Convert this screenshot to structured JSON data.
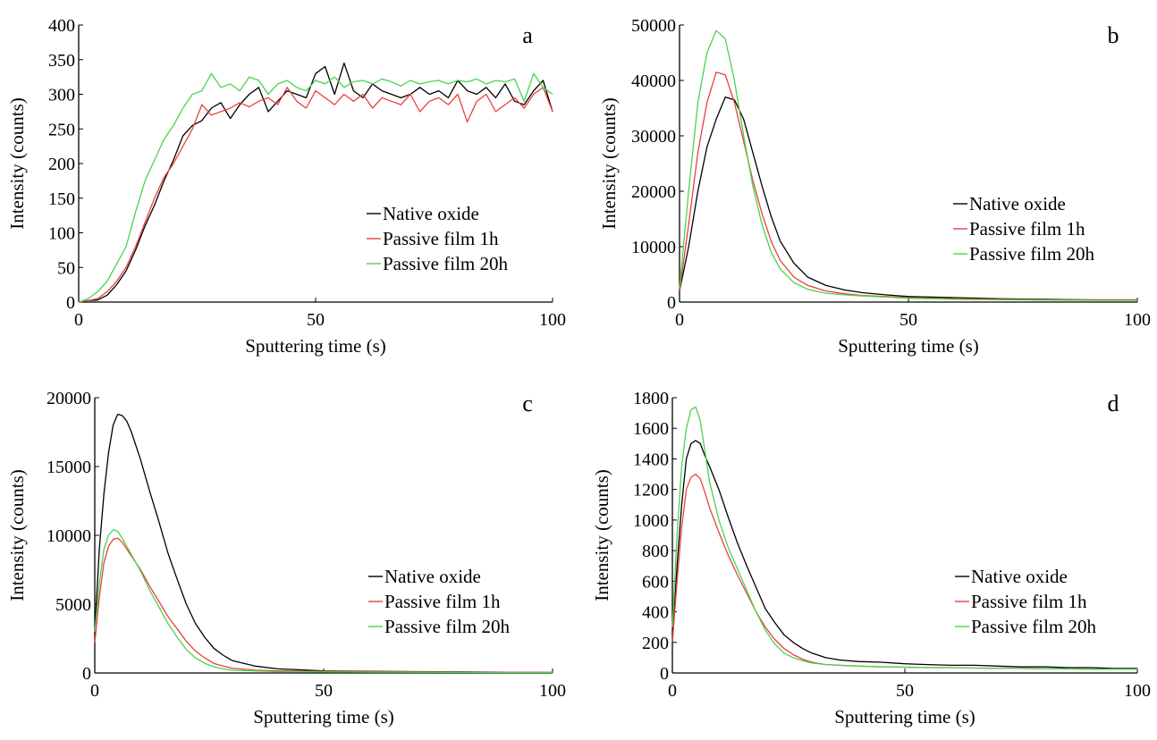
{
  "chart_data": [
    {
      "type": "line",
      "panel_label": "a",
      "xlabel": "Sputtering time (s)",
      "ylabel": "Intensity (counts)",
      "xlim": [
        0,
        100
      ],
      "ylim": [
        0,
        400
      ],
      "xticks": [
        0,
        50,
        100
      ],
      "yticks": [
        0,
        50,
        100,
        150,
        200,
        250,
        300,
        350,
        400
      ],
      "tick_labels_y": [
        "0",
        "50",
        "100",
        "150",
        "200",
        "250",
        "300",
        "350",
        "400"
      ],
      "tick_labels_x": [
        "0",
        "50",
        "100"
      ],
      "legend_position": "bottom-right",
      "grid": false,
      "series": [
        {
          "name": "Native oxide",
          "color": "#000000",
          "x": [
            0,
            2,
            4,
            6,
            8,
            10,
            12,
            14,
            16,
            18,
            20,
            22,
            24,
            26,
            28,
            30,
            32,
            34,
            36,
            38,
            40,
            42,
            44,
            46,
            48,
            50,
            52,
            54,
            56,
            58,
            60,
            62,
            64,
            66,
            68,
            70,
            72,
            74,
            76,
            78,
            80,
            82,
            84,
            86,
            88,
            90,
            92,
            94,
            96,
            98,
            100
          ],
          "y": [
            0,
            2,
            3,
            10,
            25,
            45,
            75,
            110,
            140,
            175,
            205,
            240,
            255,
            262,
            280,
            288,
            265,
            285,
            300,
            310,
            275,
            290,
            305,
            300,
            295,
            330,
            340,
            300,
            345,
            305,
            295,
            315,
            305,
            300,
            295,
            300,
            310,
            300,
            305,
            295,
            320,
            305,
            300,
            310,
            295,
            315,
            290,
            285,
            305,
            320,
            275
          ]
        },
        {
          "name": "Passive film 1h",
          "color": "#e8413c",
          "x": [
            0,
            2,
            4,
            6,
            8,
            10,
            12,
            14,
            16,
            18,
            20,
            22,
            24,
            26,
            28,
            30,
            32,
            34,
            36,
            38,
            40,
            42,
            44,
            46,
            48,
            50,
            52,
            54,
            56,
            58,
            60,
            62,
            64,
            66,
            68,
            70,
            72,
            74,
            76,
            78,
            80,
            82,
            84,
            86,
            88,
            90,
            92,
            94,
            96,
            98,
            100
          ],
          "y": [
            0,
            2,
            5,
            15,
            30,
            50,
            80,
            115,
            150,
            180,
            200,
            225,
            250,
            285,
            270,
            275,
            280,
            288,
            282,
            290,
            295,
            285,
            310,
            290,
            280,
            305,
            295,
            285,
            300,
            290,
            300,
            280,
            295,
            290,
            285,
            300,
            275,
            290,
            295,
            285,
            300,
            260,
            290,
            300,
            275,
            285,
            295,
            280,
            300,
            310,
            275
          ]
        },
        {
          "name": "Passive film 20h",
          "color": "#4cd24c",
          "x": [
            0,
            2,
            4,
            6,
            8,
            10,
            12,
            14,
            16,
            18,
            20,
            22,
            24,
            26,
            28,
            30,
            32,
            34,
            36,
            38,
            40,
            42,
            44,
            46,
            48,
            50,
            52,
            54,
            56,
            58,
            60,
            62,
            64,
            66,
            68,
            70,
            72,
            74,
            76,
            78,
            80,
            82,
            84,
            86,
            88,
            90,
            92,
            94,
            96,
            98,
            100
          ],
          "y": [
            0,
            5,
            15,
            30,
            55,
            80,
            130,
            175,
            205,
            235,
            255,
            280,
            300,
            305,
            330,
            310,
            315,
            305,
            325,
            320,
            300,
            315,
            320,
            310,
            305,
            320,
            315,
            325,
            310,
            318,
            320,
            315,
            322,
            318,
            312,
            320,
            315,
            318,
            320,
            315,
            320,
            318,
            322,
            315,
            320,
            318,
            322,
            290,
            330,
            310,
            300
          ]
        }
      ]
    },
    {
      "type": "line",
      "panel_label": "b",
      "xlabel": "Sputtering time (s)",
      "ylabel": "Intensity (counts)",
      "xlim": [
        0,
        100
      ],
      "ylim": [
        0,
        50000
      ],
      "xticks": [
        0,
        50,
        100
      ],
      "yticks": [
        0,
        10000,
        20000,
        30000,
        40000,
        50000
      ],
      "tick_labels_y": [
        "0",
        "10000",
        "20000",
        "30000",
        "40000",
        "50000"
      ],
      "tick_labels_x": [
        "0",
        "50",
        "100"
      ],
      "legend_position": "center-right",
      "grid": false,
      "series": [
        {
          "name": "Native oxide",
          "color": "#000000",
          "x": [
            0,
            2,
            4,
            6,
            8,
            10,
            12,
            14,
            16,
            18,
            20,
            22,
            25,
            28,
            32,
            36,
            40,
            45,
            50,
            60,
            70,
            80,
            90,
            100
          ],
          "y": [
            2000,
            10000,
            20000,
            28000,
            33000,
            37000,
            36500,
            33000,
            27000,
            21000,
            15500,
            11000,
            7000,
            4500,
            3000,
            2200,
            1700,
            1300,
            1000,
            800,
            600,
            500,
            400,
            400
          ]
        },
        {
          "name": "Passive film 1h",
          "color": "#e8413c",
          "x": [
            0,
            2,
            4,
            6,
            8,
            10,
            12,
            14,
            16,
            18,
            20,
            22,
            25,
            28,
            32,
            36,
            40,
            45,
            50,
            60,
            70,
            80,
            90,
            100
          ],
          "y": [
            2000,
            14000,
            27000,
            36000,
            41500,
            41000,
            36000,
            29000,
            22000,
            16000,
            11000,
            7500,
            4500,
            3000,
            2000,
            1500,
            1200,
            1000,
            800,
            600,
            500,
            400,
            400,
            400
          ]
        },
        {
          "name": "Passive film 20h",
          "color": "#4cd24c",
          "x": [
            0,
            2,
            4,
            6,
            8,
            10,
            12,
            14,
            16,
            18,
            20,
            22,
            25,
            28,
            32,
            36,
            40,
            45,
            50,
            60,
            70,
            80,
            90,
            100
          ],
          "y": [
            2500,
            20000,
            36000,
            45000,
            49000,
            47500,
            40000,
            30000,
            21000,
            14000,
            9000,
            6000,
            3500,
            2300,
            1600,
            1300,
            1100,
            900,
            700,
            500,
            400,
            350,
            300,
            300
          ]
        }
      ]
    },
    {
      "type": "line",
      "panel_label": "c",
      "xlabel": "Sputtering time (s)",
      "ylabel": "Intensity (counts)",
      "xlim": [
        0,
        100
      ],
      "ylim": [
        0,
        20000
      ],
      "xticks": [
        0,
        50,
        100
      ],
      "yticks": [
        0,
        5000,
        10000,
        15000,
        20000
      ],
      "tick_labels_y": [
        "0",
        "5000",
        "10000",
        "15000",
        "20000"
      ],
      "tick_labels_x": [
        "0",
        "50",
        "100"
      ],
      "legend_position": "center-right",
      "grid": false,
      "series": [
        {
          "name": "Native oxide",
          "color": "#000000",
          "x": [
            0,
            1,
            2,
            3,
            4,
            5,
            6,
            7,
            8,
            10,
            12,
            14,
            16,
            18,
            20,
            22,
            24,
            26,
            28,
            30,
            35,
            40,
            50,
            60,
            70,
            80,
            90,
            100
          ],
          "y": [
            3000,
            9000,
            13000,
            16000,
            18000,
            18800,
            18700,
            18300,
            17500,
            15500,
            13200,
            11000,
            8700,
            6800,
            5000,
            3600,
            2600,
            1800,
            1300,
            900,
            500,
            300,
            150,
            120,
            100,
            80,
            60,
            50
          ]
        },
        {
          "name": "Passive film 1h",
          "color": "#e8413c",
          "x": [
            0,
            1,
            2,
            3,
            4,
            5,
            6,
            7,
            8,
            10,
            12,
            14,
            16,
            18,
            20,
            22,
            24,
            26,
            28,
            30,
            35,
            40,
            50,
            60,
            70,
            80,
            90,
            100
          ],
          "y": [
            2200,
            5500,
            8000,
            9200,
            9700,
            9800,
            9500,
            9000,
            8500,
            7500,
            6300,
            5200,
            4100,
            3200,
            2300,
            1600,
            1100,
            700,
            500,
            350,
            200,
            150,
            120,
            100,
            80,
            60,
            50,
            50
          ]
        },
        {
          "name": "Passive film 20h",
          "color": "#4cd24c",
          "x": [
            0,
            1,
            2,
            3,
            4,
            5,
            6,
            7,
            8,
            10,
            12,
            14,
            16,
            18,
            20,
            22,
            24,
            26,
            28,
            30,
            35,
            40,
            50,
            60,
            70,
            80,
            90,
            100
          ],
          "y": [
            3000,
            6500,
            9000,
            10000,
            10400,
            10300,
            9800,
            9200,
            8600,
            7400,
            6000,
            4800,
            3600,
            2600,
            1700,
            1100,
            700,
            450,
            300,
            200,
            150,
            100,
            80,
            60,
            50,
            40,
            30,
            30
          ]
        }
      ]
    },
    {
      "type": "line",
      "panel_label": "d",
      "xlabel": "Sputtering time (s)",
      "ylabel": "Intensity (counts)",
      "xlim": [
        0,
        100
      ],
      "ylim": [
        0,
        1800
      ],
      "xticks": [
        0,
        50,
        100
      ],
      "yticks": [
        0,
        200,
        400,
        600,
        800,
        1000,
        1200,
        1400,
        1600,
        1800
      ],
      "tick_labels_y": [
        "0",
        "200",
        "400",
        "600",
        "800",
        "1000",
        "1200",
        "1400",
        "1600",
        "1800"
      ],
      "tick_labels_x": [
        "0",
        "50",
        "100"
      ],
      "legend_position": "bottom-right",
      "grid": false,
      "series": [
        {
          "name": "Native oxide",
          "color": "#000000",
          "x": [
            0,
            1,
            2,
            3,
            4,
            5,
            6,
            7,
            8,
            10,
            12,
            14,
            16,
            18,
            20,
            22,
            24,
            26,
            28,
            30,
            33,
            36,
            40,
            45,
            50,
            55,
            60,
            65,
            70,
            75,
            80,
            85,
            90,
            95,
            100
          ],
          "y": [
            200,
            700,
            1100,
            1400,
            1500,
            1520,
            1500,
            1420,
            1350,
            1200,
            1020,
            850,
            700,
            560,
            420,
            330,
            250,
            200,
            160,
            130,
            100,
            85,
            75,
            70,
            60,
            55,
            50,
            50,
            45,
            40,
            40,
            35,
            35,
            30,
            30
          ]
        },
        {
          "name": "Passive film 1h",
          "color": "#e8413c",
          "x": [
            0,
            1,
            2,
            3,
            4,
            5,
            6,
            7,
            8,
            10,
            12,
            14,
            16,
            18,
            20,
            22,
            24,
            26,
            28,
            30,
            33,
            36,
            40,
            45,
            50,
            55,
            60,
            65,
            70,
            75,
            80,
            85,
            90,
            95,
            100
          ],
          "y": [
            200,
            600,
            950,
            1200,
            1280,
            1300,
            1270,
            1180,
            1080,
            920,
            770,
            640,
            520,
            400,
            300,
            220,
            160,
            120,
            90,
            70,
            55,
            50,
            45,
            40,
            38,
            35,
            35,
            32,
            30,
            30,
            28,
            28,
            25,
            25,
            25
          ]
        },
        {
          "name": "Passive film 20h",
          "color": "#4cd24c",
          "x": [
            0,
            1,
            2,
            3,
            4,
            5,
            6,
            7,
            8,
            10,
            12,
            14,
            16,
            18,
            20,
            22,
            24,
            26,
            28,
            30,
            33,
            36,
            40,
            45,
            50,
            55,
            60,
            65,
            70,
            75,
            80,
            85,
            90,
            95,
            100
          ],
          "y": [
            300,
            900,
            1350,
            1600,
            1720,
            1740,
            1650,
            1450,
            1250,
            1000,
            820,
            680,
            540,
            400,
            280,
            190,
            130,
            100,
            80,
            65,
            55,
            50,
            45,
            40,
            38,
            35,
            35,
            32,
            30,
            30,
            28,
            28,
            25,
            25,
            25
          ]
        }
      ]
    }
  ]
}
